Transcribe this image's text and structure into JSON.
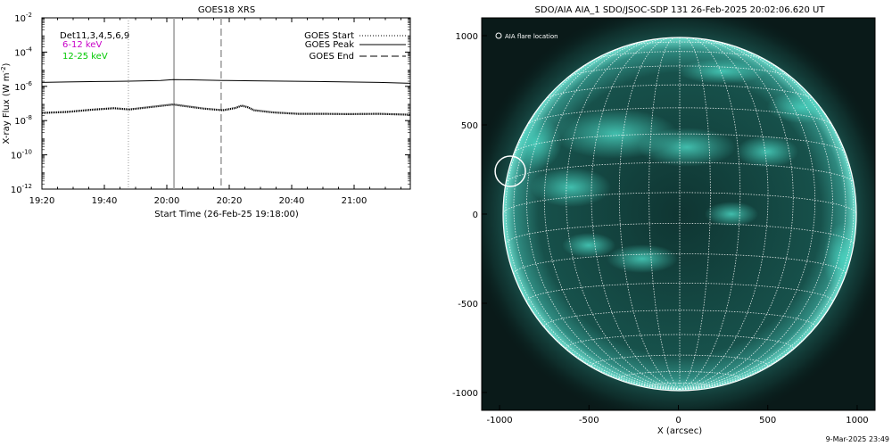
{
  "colors": {
    "background": "#ffffff",
    "axis": "#000000",
    "channel_6_12": "#c800c8",
    "channel_12_25": "#00c800",
    "sun_disk": "#0a2a2a",
    "sun_limb": "#58c6b8",
    "sun_active": "#49d3c0",
    "grid": "#ffffff"
  },
  "timestamp": "9-Mar-2025 23:49",
  "chart_data": [
    {
      "type": "line",
      "title": "GOES18 XRS",
      "xlabel": "Start Time (26-Feb-25 19:18:00)",
      "ylabel": "X-ray Flux (W m",
      "ylabel_sup": "-2",
      "ylabel_close": ")",
      "scale": {
        "y": "log"
      },
      "ylim_exp": [
        -12,
        -2
      ],
      "xlim_min": [
        2,
        120
      ],
      "x_ticks": [
        {
          "label": "19:20",
          "min": 2
        },
        {
          "label": "19:40",
          "min": 22
        },
        {
          "label": "20:00",
          "min": 42
        },
        {
          "label": "20:20",
          "min": 62
        },
        {
          "label": "20:40",
          "min": 82
        },
        {
          "label": "21:00",
          "min": 102
        }
      ],
      "y_ticks": [
        {
          "base": "10",
          "exp": "-2"
        },
        {
          "base": "10",
          "exp": "-4"
        },
        {
          "base": "10",
          "exp": "-6"
        },
        {
          "base": "10",
          "exp": "-8"
        },
        {
          "base": "10",
          "exp": "-10"
        },
        {
          "base": "10",
          "exp": "-12"
        }
      ],
      "detectors": "Det11,3,4,5,6,9",
      "channels": [
        {
          "name": "6-12 keV",
          "color": "#c800c8"
        },
        {
          "name": "12-25 keV",
          "color": "#00c800"
        }
      ],
      "legend": {
        "placement": "top-right",
        "items": [
          {
            "label": "GOES Start",
            "style": "dotted"
          },
          {
            "label": "GOES Peak",
            "style": "solid"
          },
          {
            "label": "GOES End",
            "style": "dashed"
          }
        ]
      },
      "markers": {
        "start": 29.7,
        "peak": 44.3,
        "end": 59.4
      },
      "series": [
        {
          "channel": "long",
          "style": "solid",
          "x": [
            2,
            10,
            20,
            30,
            40,
            44,
            50,
            60,
            70,
            80,
            90,
            100,
            110,
            120
          ],
          "y": [
            1.7e-06,
            1.8e-06,
            1.9e-06,
            2e-06,
            2.2e-06,
            2.5e-06,
            2.4e-06,
            2.2e-06,
            2.1e-06,
            2e-06,
            1.9e-06,
            1.8e-06,
            1.7e-06,
            1.5e-06
          ]
        },
        {
          "channel": "short",
          "style": "dotted",
          "x": [
            2,
            10,
            18,
            25,
            30,
            36,
            42,
            44,
            48,
            54,
            60,
            64,
            66,
            68,
            70,
            76,
            84,
            92,
            100,
            110,
            120
          ],
          "y": [
            2.8e-08,
            3.2e-08,
            4.3e-08,
            5.3e-08,
            4.5e-08,
            6e-08,
            8e-08,
            8.8e-08,
            7e-08,
            5e-08,
            4e-08,
            5.5e-08,
            7.5e-08,
            6e-08,
            4e-08,
            3e-08,
            2.5e-08,
            2.5e-08,
            2.4e-08,
            2.5e-08,
            2.2e-08
          ]
        }
      ]
    },
    {
      "type": "image",
      "title": "SDO/AIA AIA_1 SDO/JSOC-SDP 131 26-Feb-2025 20:02:06.620 UT",
      "xlabel": "X (arcsec)",
      "xlim": [
        -1100,
        1100
      ],
      "ylim": [
        -1100,
        1100
      ],
      "x_ticks": [
        "-1000",
        "-500",
        "0",
        "500",
        "1000"
      ],
      "y_ticks": [
        "1000",
        "500",
        "0",
        "-500",
        "-1000"
      ],
      "legend_label": "AIA flare location",
      "flare_location": {
        "x": -940,
        "y": 240,
        "radius_arcsec": 85
      },
      "solar_radius_arcsec": 985
    }
  ]
}
